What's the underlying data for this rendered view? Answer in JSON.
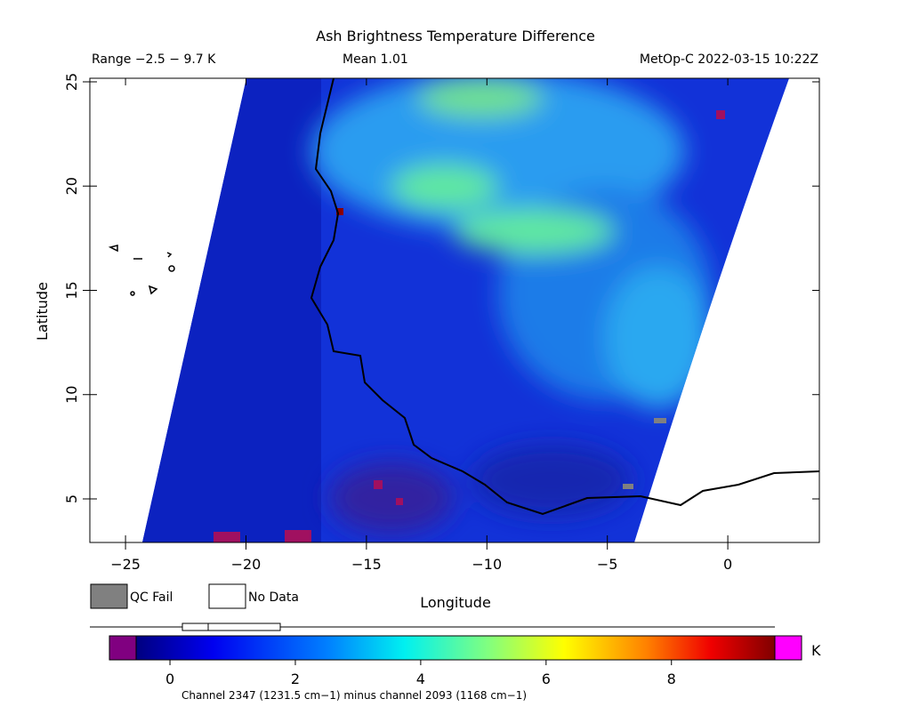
{
  "title": "Ash Brightness Temperature Difference",
  "range": "Range −2.5 − 9.7 K",
  "mean": "Mean 1.01",
  "satellite": "MetOp-C 2022-03-15 10:22Z",
  "map": {
    "x_axis": {
      "label": "Longitude",
      "lim": [
        -26.48,
        3.8
      ],
      "ticks": [
        {
          "value": -25,
          "label": "−25"
        },
        {
          "value": -20,
          "label": "−20"
        },
        {
          "value": -15,
          "label": "−15"
        },
        {
          "value": -10,
          "label": "−10"
        },
        {
          "value": -5,
          "label": "−5"
        },
        0
      ]
    },
    "y_axis": {
      "label": "Latitude",
      "lim": [
        2.91,
        25.17
      ],
      "ticks": [
        5,
        10,
        15,
        20,
        25
      ]
    }
  },
  "legend": [
    "QC Fail",
    "No Data"
  ],
  "colorbar": {
    "lim": [
      -0.54,
      9.65
    ],
    "ticks": [
      0,
      2,
      4,
      6,
      8
    ],
    "unit": "K"
  },
  "footnote": "Channel 2347 (1231.5 cm−1) minus channel 2093 (1168 cm−1)"
}
